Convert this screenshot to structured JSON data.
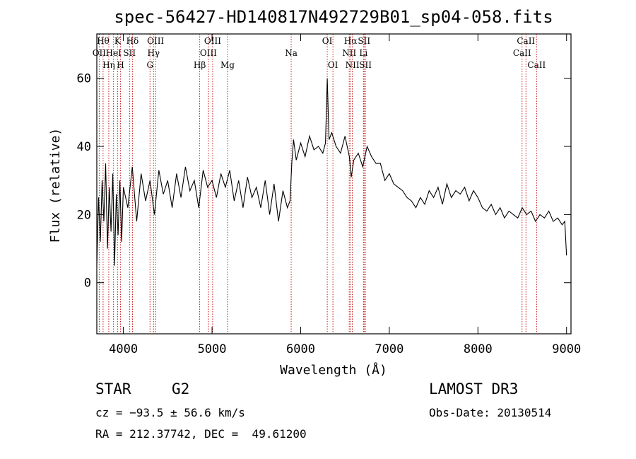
{
  "chart_data": {
    "type": "line",
    "title": "spec-56427-HD140817N492729B01_sp04-058.fits",
    "xlabel": "Wavelength (Å)",
    "ylabel": "Flux (relative)",
    "xlim": [
      3700,
      9050
    ],
    "ylim": [
      -15,
      73
    ],
    "xticks": [
      4000,
      5000,
      6000,
      7000,
      8000,
      9000
    ],
    "yticks": [
      0,
      20,
      40,
      60
    ],
    "grid": false,
    "series": [
      {
        "name": "flux",
        "x": [
          3700,
          3720,
          3740,
          3760,
          3780,
          3800,
          3820,
          3840,
          3860,
          3880,
          3900,
          3920,
          3940,
          3960,
          3980,
          4000,
          4050,
          4100,
          4150,
          4200,
          4250,
          4300,
          4350,
          4400,
          4450,
          4500,
          4550,
          4600,
          4650,
          4700,
          4750,
          4800,
          4850,
          4900,
          4950,
          5000,
          5050,
          5100,
          5150,
          5200,
          5250,
          5300,
          5350,
          5400,
          5450,
          5500,
          5550,
          5600,
          5650,
          5700,
          5750,
          5800,
          5850,
          5880,
          5900,
          5920,
          5950,
          6000,
          6050,
          6100,
          6150,
          6200,
          6250,
          6280,
          6300,
          6320,
          6350,
          6400,
          6450,
          6500,
          6550,
          6570,
          6600,
          6650,
          6700,
          6750,
          6800,
          6850,
          6900,
          6950,
          7000,
          7050,
          7100,
          7150,
          7200,
          7250,
          7300,
          7350,
          7400,
          7450,
          7500,
          7550,
          7600,
          7650,
          7700,
          7750,
          7800,
          7850,
          7900,
          7950,
          8000,
          8050,
          8100,
          8150,
          8200,
          8250,
          8300,
          8350,
          8400,
          8450,
          8500,
          8550,
          8600,
          8650,
          8700,
          8750,
          8800,
          8850,
          8900,
          8950,
          8980,
          9000
        ],
        "y": [
          5,
          25,
          12,
          30,
          18,
          35,
          10,
          28,
          15,
          32,
          5,
          26,
          14,
          30,
          12,
          28,
          22,
          34,
          18,
          32,
          24,
          30,
          20,
          33,
          26,
          30,
          22,
          32,
          25,
          34,
          27,
          30,
          22,
          33,
          28,
          30,
          25,
          32,
          28,
          33,
          24,
          30,
          22,
          31,
          25,
          28,
          22,
          30,
          20,
          29,
          18,
          27,
          22,
          24,
          35,
          42,
          36,
          41,
          37,
          43,
          39,
          40,
          38,
          41,
          60,
          42,
          44,
          40,
          38,
          43,
          37,
          31,
          36,
          38,
          34,
          40,
          37,
          35,
          35,
          30,
          32,
          29,
          28,
          27,
          25,
          24,
          22,
          25,
          23,
          27,
          25,
          28,
          23,
          29,
          25,
          27,
          26,
          28,
          24,
          27,
          25,
          22,
          21,
          23,
          20,
          22,
          19,
          21,
          20,
          19,
          22,
          20,
          21,
          18,
          20,
          19,
          21,
          18,
          19,
          17,
          18,
          8
        ]
      }
    ],
    "lines": [
      {
        "label": "OII",
        "wave": 3727,
        "row": 2
      },
      {
        "label": "Hθ",
        "wave": 3771,
        "row": 1
      },
      {
        "label": "Hη",
        "wave": 3835,
        "row": 3
      },
      {
        "label": "K",
        "wave": 3934,
        "row": 1
      },
      {
        "label": "HeI",
        "wave": 3889,
        "row": 2
      },
      {
        "label": "H",
        "wave": 3968,
        "row": 3
      },
      {
        "label": "SII",
        "wave": 4069,
        "row": 2
      },
      {
        "label": "Hδ",
        "wave": 4102,
        "row": 1
      },
      {
        "label": "OIII",
        "wave": 4363,
        "row": 1
      },
      {
        "label": "Hγ",
        "wave": 4340,
        "row": 2
      },
      {
        "label": "G",
        "wave": 4300,
        "row": 3
      },
      {
        "label": "Hβ",
        "wave": 4861,
        "row": 3
      },
      {
        "label": "OIII",
        "wave": 5007,
        "row": 1
      },
      {
        "label": "OIII",
        "wave": 4959,
        "row": 2
      },
      {
        "label": "Mg",
        "wave": 5175,
        "row": 3
      },
      {
        "label": "Na",
        "wave": 5893,
        "row": 2
      },
      {
        "label": "OI",
        "wave": 6300,
        "row": 1
      },
      {
        "label": "OI",
        "wave": 6364,
        "row": 3
      },
      {
        "label": "Hα",
        "wave": 6563,
        "row": 1
      },
      {
        "label": "SII",
        "wave": 6716,
        "row": 1
      },
      {
        "label": "NII",
        "wave": 6548,
        "row": 2
      },
      {
        "label": "Li",
        "wave": 6708,
        "row": 2
      },
      {
        "label": "NII",
        "wave": 6583,
        "row": 3
      },
      {
        "label": "SII",
        "wave": 6731,
        "row": 3
      },
      {
        "label": "CaII",
        "wave": 8542,
        "row": 1
      },
      {
        "label": "CaII",
        "wave": 8498,
        "row": 2
      },
      {
        "label": "CaII",
        "wave": 8662,
        "row": 3
      }
    ]
  },
  "info": {
    "object_class": "STAR",
    "subclass": "G2",
    "survey": "LAMOST DR3",
    "cz": "cz = −93.5 ± 56.6 km/s",
    "obs_date": "Obs-Date: 20130514",
    "radec": "RA = 212.37742, DEC =  49.61200"
  },
  "colors": {
    "spectrum": "#000000",
    "line_marker": "#c00000",
    "axes": "#000000",
    "background": "#ffffff"
  }
}
